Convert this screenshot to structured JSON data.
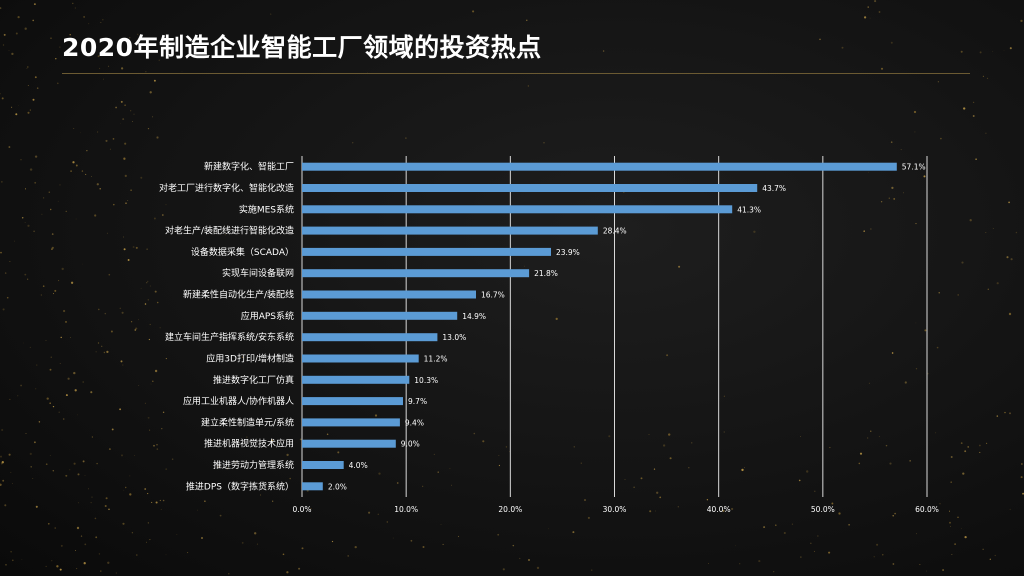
{
  "page": {
    "title": "2020年制造企业智能工厂领域的投资热点"
  },
  "colors": {
    "bar": "#5b9bd5",
    "grid": "#d9d9d9",
    "text": "#ffffff",
    "rule": "#6b5a32"
  },
  "chart_data": {
    "type": "bar",
    "orientation": "horizontal",
    "categories": [
      "新建数字化、智能工厂",
      "对老工厂进行数字化、智能化改造",
      "实施MES系统",
      "对老生产/装配线进行智能化改造",
      "设备数据采集（SCADA）",
      "实现车间设备联网",
      "新建柔性自动化生产/装配线",
      "应用APS系统",
      "建立车间生产指挥系统/安东系统",
      "应用3D打印/增材制造",
      "推进数字化工厂仿真",
      "应用工业机器人/协作机器人",
      "建立柔性制造单元/系统",
      "推进机器视觉技术应用",
      "推进劳动力管理系统",
      "推进DPS（数字拣货系统）"
    ],
    "values": [
      57.1,
      43.7,
      41.3,
      28.4,
      23.9,
      21.8,
      16.7,
      14.9,
      13.0,
      11.2,
      10.3,
      9.7,
      9.4,
      9.0,
      4.0,
      2.0
    ],
    "value_labels": [
      "57.1%",
      "43.7%",
      "41.3%",
      "28.4%",
      "23.9%",
      "21.8%",
      "16.7%",
      "14.9%",
      "13.0%",
      "11.2%",
      "10.3%",
      "9.7%",
      "9.4%",
      "9.0%",
      "4.0%",
      "2.0%"
    ],
    "xlim": [
      0,
      60
    ],
    "xticks": [
      0,
      10,
      20,
      30,
      40,
      50,
      60
    ],
    "xtick_labels": [
      "0.0%",
      "10.0%",
      "20.0%",
      "30.0%",
      "40.0%",
      "50.0%",
      "60.0%"
    ],
    "grid": true,
    "legend": "none",
    "title": "",
    "xlabel": "",
    "ylabel": ""
  }
}
